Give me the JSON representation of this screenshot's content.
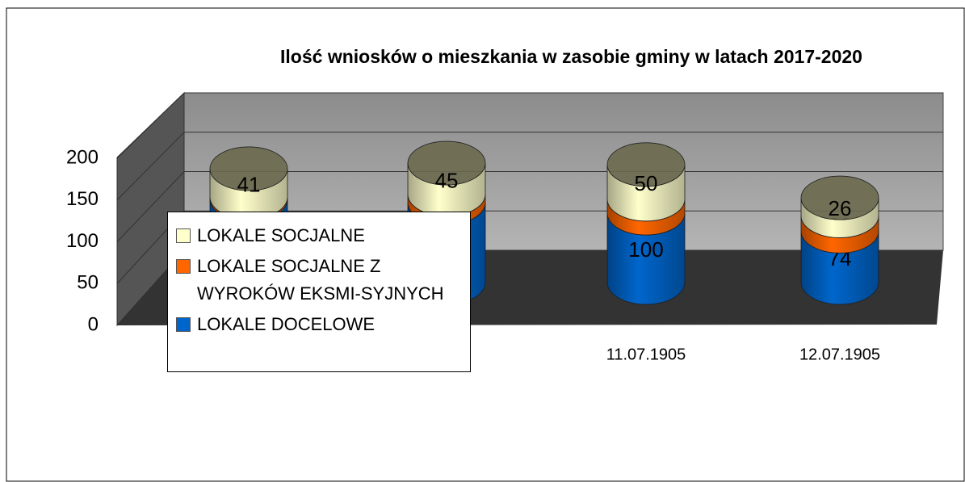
{
  "chart_data": {
    "type": "bar3d_stacked_cylinder",
    "title": "Ilość wniosków o mieszkania w zasobie gminy w latach 2017-2020",
    "categories": [
      null,
      null,
      "11.07.1905",
      "12.07.1905"
    ],
    "series": [
      {
        "name": "LOKALE DOCELOWE",
        "color": "#0066cc",
        "values": [
          120,
          115,
          100,
          74
        ]
      },
      {
        "name": "LOKALE SOCJALNE Z WYROKÓW EKSMI-SYJNYCH",
        "color": "#ff6600",
        "values": [
          3,
          12,
          20,
          22
        ]
      },
      {
        "name": "LOKALE SOCJALNE",
        "color": "#ffffcc",
        "values": [
          41,
          45,
          50,
          26
        ]
      }
    ],
    "ylim": [
      0,
      200
    ],
    "yticks": [
      0,
      50,
      100,
      150,
      200
    ],
    "grid": true,
    "legend": "left"
  }
}
